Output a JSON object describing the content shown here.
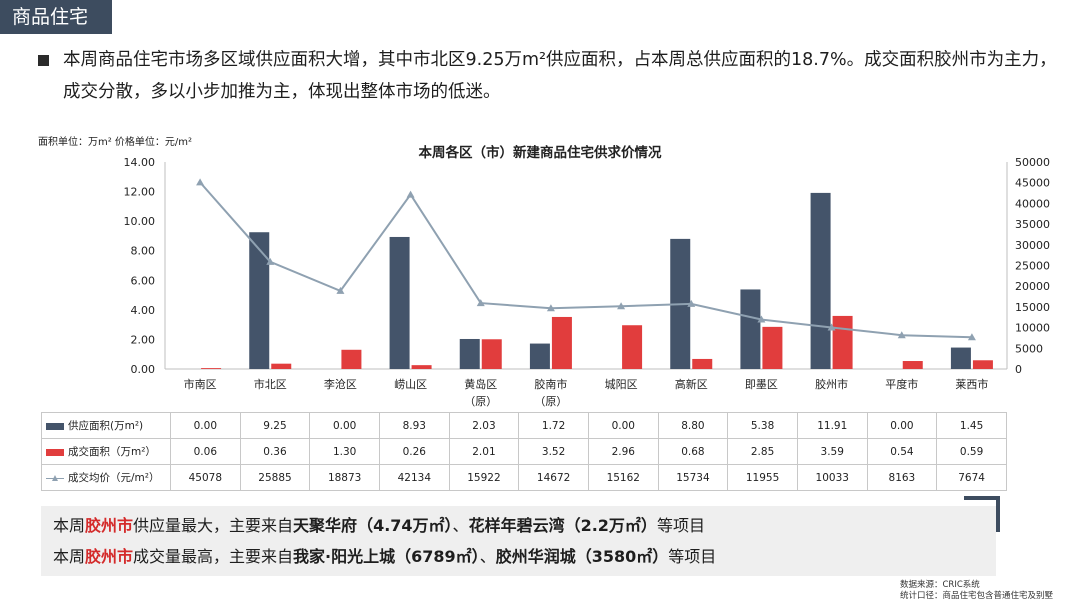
{
  "section_tag": "商品住宅",
  "bullet_text": "本周商品住宅市场多区域供应面积大增，其中市北区9.25万m²供应面积，占本周总供应面积的18.7%。成交面积胶州市为主力，成交分散，多以小步加推为主，体现出整体市场的低迷。",
  "units_label": "面积单位：万m²  价格单位：元/m²",
  "colors": {
    "supply": "#44546a",
    "deal": "#e13d3d",
    "price": "#8fa1b1",
    "tag_bg": "#3d4c5f",
    "highlight": "#d42b2b"
  },
  "chart_data": {
    "type": "bar",
    "title": "本周各区（市）新建商品住宅供求价情况",
    "categories": [
      "市南区",
      "市北区",
      "李沧区",
      "崂山区",
      "黄岛区(原)",
      "胶南市(原)",
      "城阳区",
      "高新区",
      "即墨区",
      "胶州市",
      "平度市",
      "莱西市"
    ],
    "category_lines": [
      [
        "市南区"
      ],
      [
        "市北区"
      ],
      [
        "李沧区"
      ],
      [
        "崂山区"
      ],
      [
        "黄岛区",
        "（原）"
      ],
      [
        "胶南市",
        "（原）"
      ],
      [
        "城阳区"
      ],
      [
        "高新区"
      ],
      [
        "即墨区"
      ],
      [
        "胶州市"
      ],
      [
        "平度市"
      ],
      [
        "莱西市"
      ]
    ],
    "series": [
      {
        "name": "供应面积(万m²)",
        "type": "bar",
        "axis": "left",
        "values": [
          0.0,
          9.25,
          0.0,
          8.93,
          2.03,
          1.72,
          0.0,
          8.8,
          5.38,
          11.91,
          0.0,
          1.45
        ]
      },
      {
        "name": "成交面积（万m²）",
        "type": "bar",
        "axis": "left",
        "values": [
          0.06,
          0.36,
          1.3,
          0.26,
          2.01,
          3.52,
          2.96,
          0.68,
          2.85,
          3.59,
          0.54,
          0.59
        ]
      },
      {
        "name": "成交均价（元/m²）",
        "type": "line",
        "axis": "right",
        "values": [
          45078,
          25885,
          18873,
          42134,
          15922,
          14672,
          15162,
          15734,
          11955,
          10033,
          8163,
          7674
        ]
      }
    ],
    "left_axis": {
      "range": [
        0,
        14
      ],
      "ticks": [
        "0.00",
        "2.00",
        "4.00",
        "6.00",
        "8.00",
        "10.00",
        "12.00",
        "14.00"
      ]
    },
    "right_axis": {
      "range": [
        0,
        50000
      ],
      "ticks": [
        "0",
        "5000",
        "10000",
        "15000",
        "20000",
        "25000",
        "30000",
        "35000",
        "40000",
        "45000",
        "50000"
      ]
    },
    "table_rows": [
      {
        "label": "供应面积(万m²)",
        "cells": [
          "0.00",
          "9.25",
          "0.00",
          "8.93",
          "2.03",
          "1.72",
          "0.00",
          "8.80",
          "5.38",
          "11.91",
          "0.00",
          "1.45"
        ]
      },
      {
        "label": "成交面积（万m²）",
        "cells": [
          "0.06",
          "0.36",
          "1.30",
          "0.26",
          "2.01",
          "3.52",
          "2.96",
          "0.68",
          "2.85",
          "3.59",
          "0.54",
          "0.59"
        ]
      },
      {
        "label": "成交均价（元/m²）",
        "cells": [
          "45078",
          "25885",
          "18873",
          "42134",
          "15922",
          "14672",
          "15162",
          "15734",
          "11955",
          "10033",
          "8163",
          "7674"
        ]
      }
    ]
  },
  "summary": {
    "line1": {
      "prefix": "本周",
      "highlight": "胶州市",
      "middle": "供应量最大，主要来自",
      "p1": "天聚华府",
      "p1_val": "（4.74万㎡）",
      "sep": "、",
      "p2": "花样年碧云湾",
      "p2_val": "（2.2万㎡）",
      "suffix": "等项目"
    },
    "line2": {
      "prefix": "本周",
      "highlight": "胶州市",
      "middle": "成交量最高，主要来自",
      "p1": "我家·阳光上城",
      "p1_val": "（6789㎡）",
      "sep": "、",
      "p2": "胶州华润城",
      "p2_val": "（3580㎡）",
      "suffix": "等项目"
    }
  },
  "source": {
    "line1": "数据来源：CRIC系统",
    "line2": "统计口径：商品住宅包含普通住宅及别墅"
  }
}
